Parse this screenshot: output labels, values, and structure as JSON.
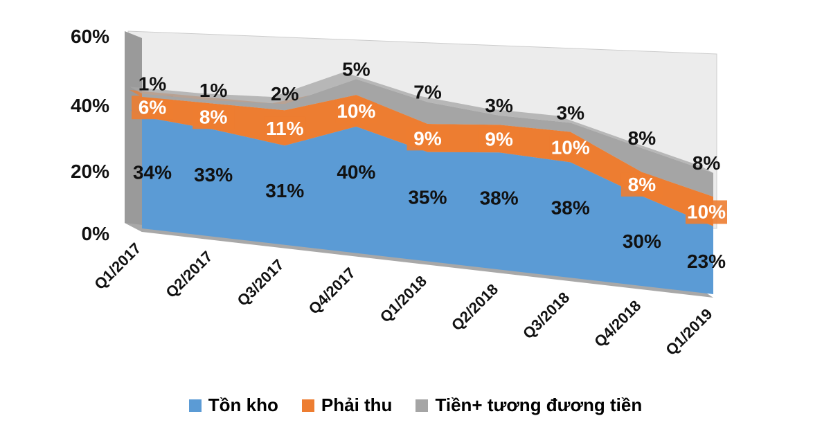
{
  "chart_data": {
    "type": "area",
    "subtype": "stacked-3d",
    "categories": [
      "Q1/2017",
      "Q2/2017",
      "Q3/2017",
      "Q4/2017",
      "Q1/2018",
      "Q2/2018",
      "Q3/2018",
      "Q4/2018",
      "Q1/2019"
    ],
    "series": [
      {
        "name": "Tồn kho",
        "color": "#5B9BD5",
        "values": [
          34,
          33,
          31,
          40,
          35,
          38,
          38,
          30,
          23
        ],
        "labels": [
          "34%",
          "33%",
          "31%",
          "40%",
          "35%",
          "38%",
          "38%",
          "30%",
          "23%"
        ]
      },
      {
        "name": "Phải thu",
        "color": "#ED7D31",
        "values": [
          6,
          8,
          11,
          10,
          9,
          9,
          10,
          8,
          10
        ],
        "labels": [
          "6%",
          "8%",
          "11%",
          "10%",
          "9%",
          "9%",
          "10%",
          "8%",
          "10%"
        ]
      },
      {
        "name": "Tiền+ tương đương tiền",
        "color": "#A5A5A5",
        "values": [
          1,
          1,
          2,
          5,
          7,
          3,
          3,
          8,
          8
        ],
        "labels": [
          "1%",
          "1%",
          "2%",
          "5%",
          "7%",
          "3%",
          "3%",
          "8%",
          "8%"
        ]
      }
    ],
    "yticks": [
      "0%",
      "20%",
      "40%",
      "60%"
    ],
    "ylim": [
      0,
      60
    ],
    "legend": "bottom"
  }
}
